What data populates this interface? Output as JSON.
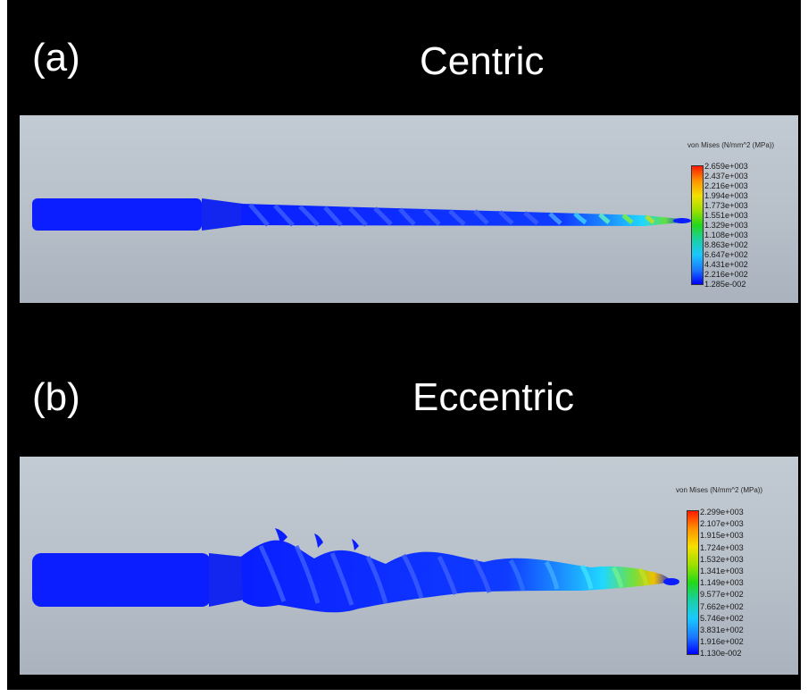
{
  "panels": [
    {
      "label": "(a)",
      "title": "Centric",
      "legend": {
        "title": "von Mises (N/mm^2 (MPa))",
        "values": [
          "2.659e+003",
          "2.437e+003",
          "2.216e+003",
          "1.994e+003",
          "1.773e+003",
          "1.551e+003",
          "1.329e+003",
          "1.108e+003",
          "8.863e+002",
          "6.647e+002",
          "4.431e+002",
          "2.216e+002",
          "1.285e-002"
        ]
      }
    },
    {
      "label": "(b)",
      "title": "Eccentric",
      "legend": {
        "title": "von Mises (N/mm^2 (MPa))",
        "values": [
          "2.299e+003",
          "2.107e+003",
          "1.915e+003",
          "1.724e+003",
          "1.532e+003",
          "1.341e+003",
          "1.149e+003",
          "9.577e+002",
          "7.662e+002",
          "5.746e+002",
          "3.831e+002",
          "1.916e+002",
          "1.130e-002"
        ]
      }
    }
  ],
  "colors": {
    "background": "#000000",
    "viewport": "#b9c1cb",
    "shaft": "#0a1eff",
    "low_stress": "#0000ff",
    "high_stress": "#ff1a00"
  }
}
